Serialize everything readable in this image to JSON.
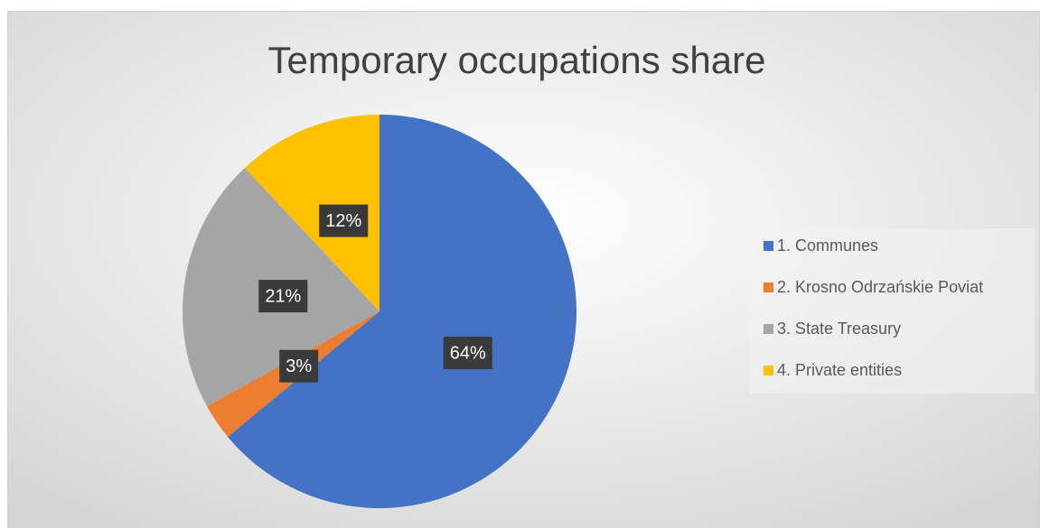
{
  "chart_data": {
    "type": "pie",
    "title": "Temporary occupations share",
    "categories": [
      "1. Communes",
      "2. Krosno Odrzańskie Poviat",
      "3. State Treasury",
      "4. Private entities"
    ],
    "values": [
      64,
      3,
      21,
      12
    ],
    "value_labels": [
      "64%",
      "3%",
      "21%",
      "12%"
    ],
    "colors": [
      "#4472c4",
      "#ed7d31",
      "#a5a5a5",
      "#ffc000"
    ],
    "legend": "right"
  }
}
